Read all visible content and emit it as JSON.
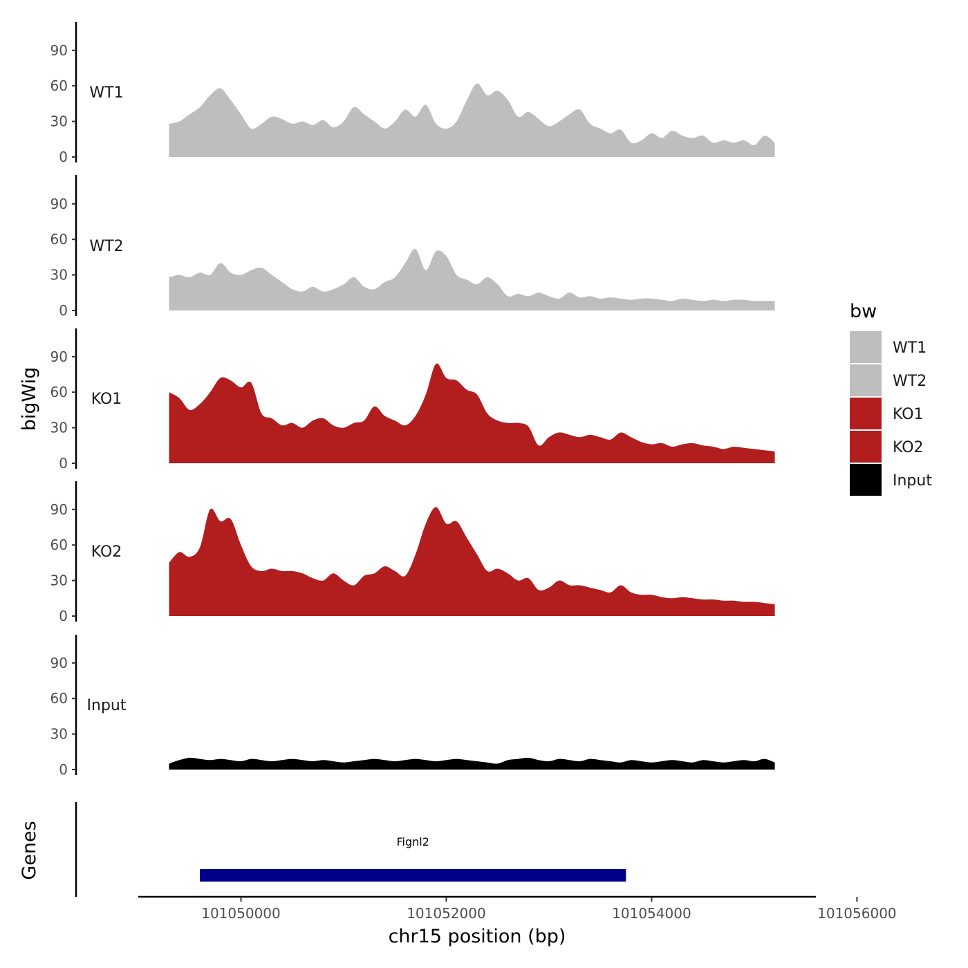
{
  "chart_data": {
    "type": "area",
    "title": "",
    "xlabel": "chr15 position (bp)",
    "ylabel": "bigWig",
    "genes_label": "Genes",
    "chromosome": "chr15",
    "xlim": [
      101049000,
      101055600
    ],
    "ylim": [
      0,
      115
    ],
    "x_ticks": [
      101050000,
      101052000,
      101054000,
      101056000
    ],
    "x_tick_labels": [
      "101050000",
      "101052000",
      "101054000",
      "101056000"
    ],
    "y_ticks": [
      0,
      30,
      60,
      90
    ],
    "y_tick_labels": [
      "0",
      "30",
      "60",
      "90"
    ],
    "legend": {
      "title": "bw",
      "entries": [
        {
          "label": "WT1",
          "color": "#BEBEBE"
        },
        {
          "label": "WT2",
          "color": "#BEBEBE"
        },
        {
          "label": "KO1",
          "color": "#B21E1E"
        },
        {
          "label": "KO2",
          "color": "#B21E1E"
        },
        {
          "label": "Input",
          "color": "#000000"
        }
      ]
    },
    "x_start": 101049300,
    "x_step": 100,
    "series": [
      {
        "name": "WT1",
        "color": "#BEBEBE",
        "values": [
          28,
          30,
          36,
          42,
          52,
          58,
          48,
          36,
          24,
          28,
          34,
          32,
          28,
          30,
          27,
          31,
          25,
          30,
          42,
          36,
          30,
          24,
          30,
          40,
          34,
          44,
          28,
          24,
          30,
          48,
          62,
          52,
          56,
          48,
          34,
          38,
          32,
          26,
          30,
          36,
          40,
          28,
          24,
          20,
          23,
          12,
          14,
          20,
          16,
          22,
          18,
          16,
          18,
          12,
          14,
          12,
          14,
          10,
          18,
          12
        ]
      },
      {
        "name": "WT2",
        "color": "#BEBEBE",
        "values": [
          28,
          30,
          28,
          32,
          30,
          40,
          32,
          30,
          34,
          36,
          30,
          24,
          18,
          16,
          20,
          16,
          18,
          22,
          28,
          20,
          18,
          24,
          28,
          40,
          52,
          34,
          50,
          46,
          30,
          26,
          22,
          28,
          22,
          12,
          14,
          12,
          15,
          12,
          10,
          15,
          11,
          12,
          10,
          11,
          10,
          9,
          10,
          10,
          9,
          8,
          10,
          9,
          8,
          9,
          8,
          9,
          9,
          8,
          8,
          8
        ]
      },
      {
        "name": "KO1",
        "color": "#B21E1E",
        "values": [
          60,
          55,
          45,
          50,
          60,
          72,
          70,
          64,
          68,
          42,
          38,
          32,
          34,
          30,
          36,
          38,
          32,
          30,
          34,
          36,
          48,
          40,
          36,
          32,
          40,
          58,
          84,
          72,
          70,
          62,
          58,
          42,
          36,
          34,
          34,
          31,
          15,
          22,
          26,
          24,
          22,
          24,
          22,
          20,
          26,
          22,
          18,
          16,
          17,
          14,
          16,
          17,
          15,
          14,
          12,
          14,
          13,
          12,
          11,
          10
        ]
      },
      {
        "name": "KO2",
        "color": "#B21E1E",
        "values": [
          45,
          54,
          50,
          58,
          90,
          80,
          82,
          60,
          42,
          38,
          40,
          38,
          38,
          36,
          32,
          30,
          36,
          30,
          26,
          34,
          36,
          42,
          38,
          34,
          52,
          78,
          92,
          78,
          80,
          66,
          52,
          38,
          40,
          36,
          30,
          32,
          22,
          24,
          30,
          26,
          26,
          24,
          22,
          20,
          26,
          20,
          18,
          18,
          16,
          15,
          16,
          15,
          14,
          14,
          13,
          13,
          12,
          12,
          11,
          10
        ]
      },
      {
        "name": "Input",
        "color": "#000000",
        "values": [
          5,
          8,
          10,
          9,
          8,
          9,
          8,
          7,
          9,
          8,
          7,
          8,
          9,
          8,
          7,
          8,
          7,
          6,
          7,
          8,
          9,
          8,
          7,
          8,
          9,
          8,
          7,
          8,
          9,
          8,
          7,
          6,
          5,
          8,
          9,
          10,
          8,
          7,
          9,
          8,
          7,
          9,
          8,
          7,
          6,
          8,
          7,
          6,
          7,
          8,
          7,
          6,
          8,
          7,
          6,
          7,
          8,
          7,
          9,
          6
        ]
      }
    ],
    "genes": [
      {
        "name": "Fignl2",
        "start": 101049600,
        "end": 101053750,
        "color": "#00008B"
      }
    ]
  }
}
